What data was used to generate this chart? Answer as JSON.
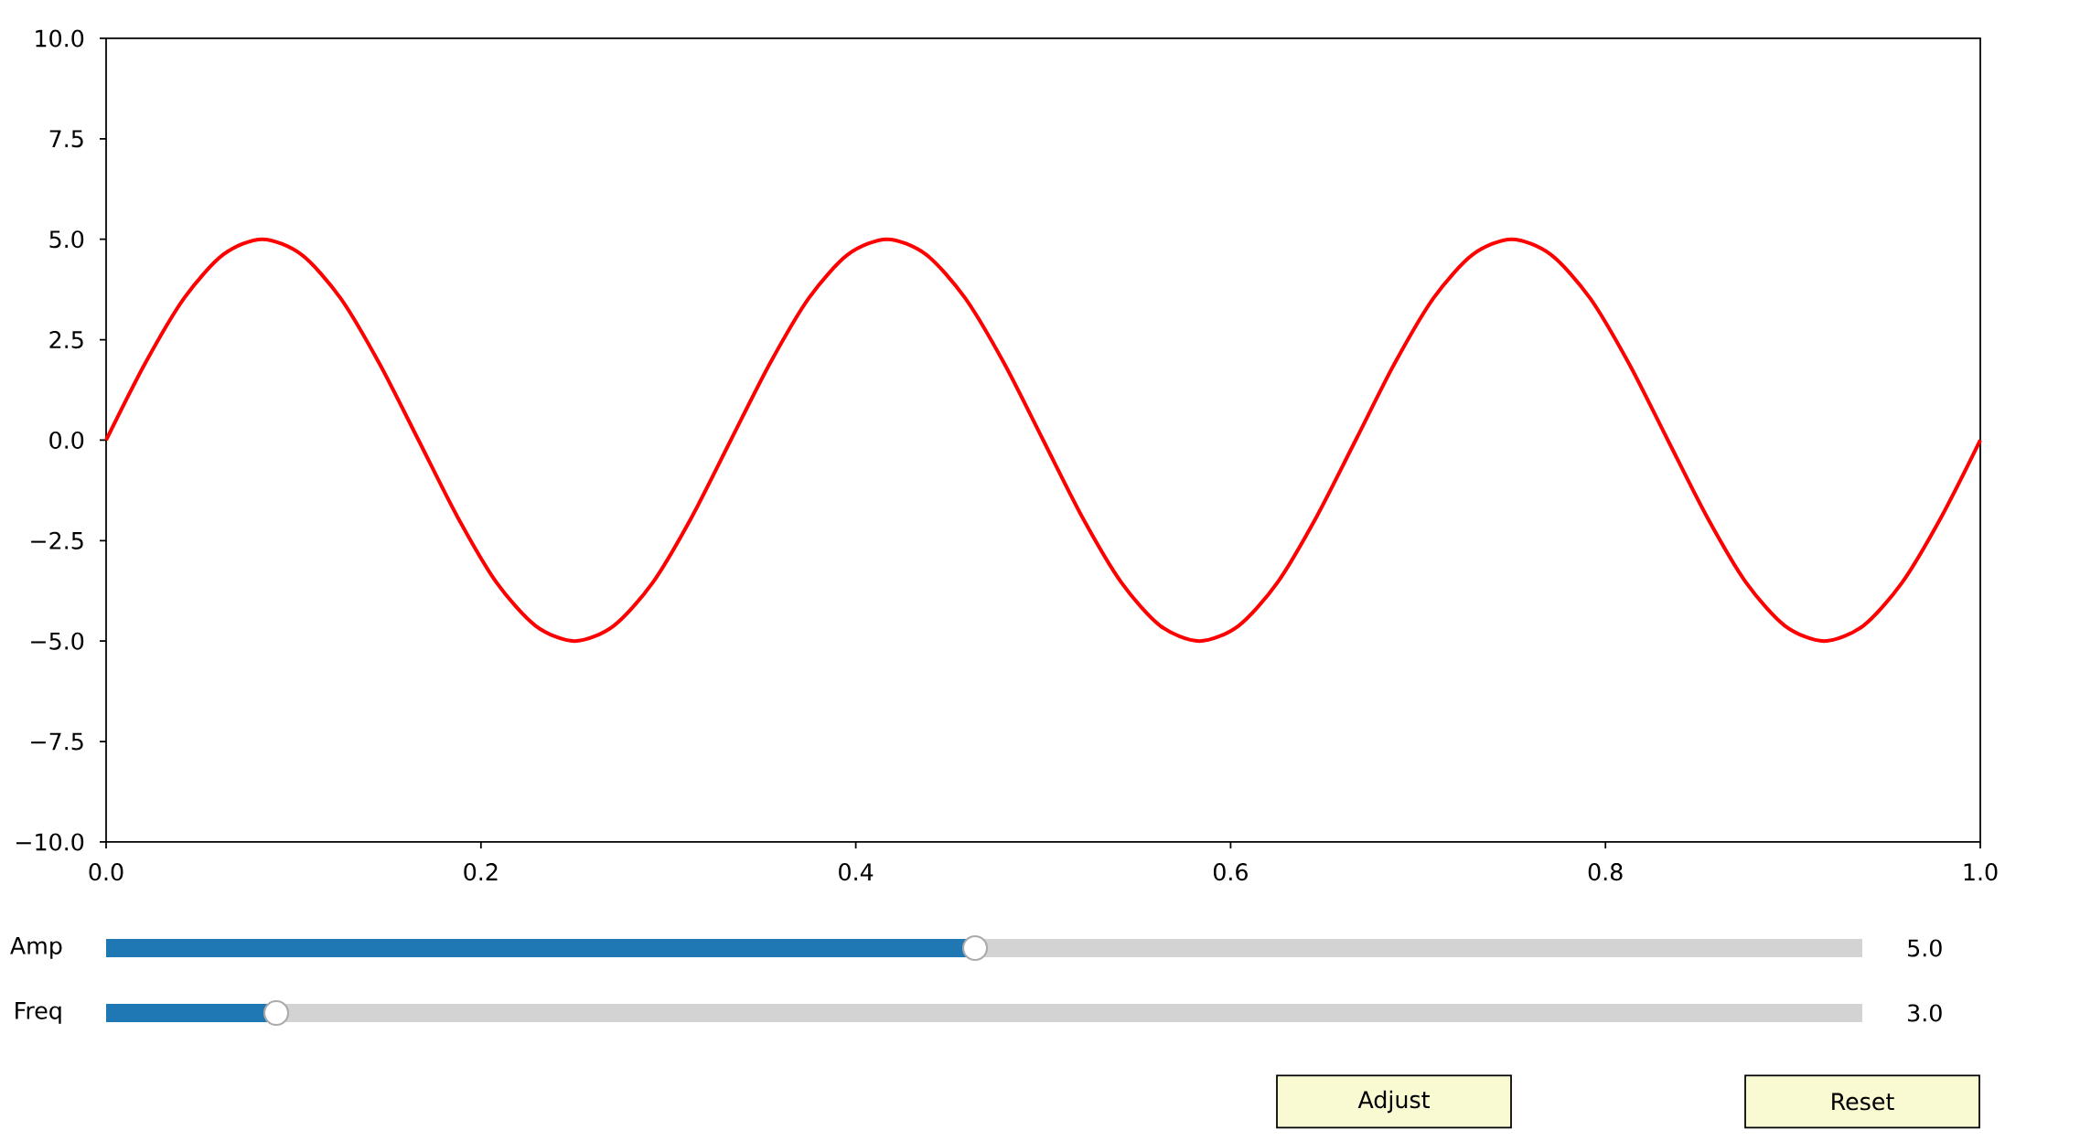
{
  "chart_data": [
    {
      "type": "line",
      "x": [
        0,
        0.0208,
        0.0417,
        0.0625,
        0.0833,
        0.1042,
        0.125,
        0.1458,
        0.1667,
        0.1875,
        0.2083,
        0.2292,
        0.25,
        0.2708,
        0.2917,
        0.3125,
        0.3333,
        0.3542,
        0.375,
        0.3958,
        0.4167,
        0.4375,
        0.4583,
        0.4792,
        0.5,
        0.5208,
        0.5417,
        0.5625,
        0.5833,
        0.6042,
        0.625,
        0.6458,
        0.6667,
        0.6875,
        0.7083,
        0.7292,
        0.75,
        0.7708,
        0.7917,
        0.8125,
        0.8333,
        0.8542,
        0.875,
        0.8958,
        0.9167,
        0.9375,
        0.9583,
        0.9792,
        1.0
      ],
      "series": [
        {
          "color": "#ff0000",
          "values": [
            0,
            1.91,
            3.54,
            4.62,
            5,
            4.62,
            3.54,
            1.91,
            0,
            -1.91,
            -3.54,
            -4.62,
            -5,
            -4.62,
            -3.54,
            -1.91,
            0,
            1.91,
            3.54,
            4.62,
            5,
            4.62,
            3.54,
            1.91,
            0,
            -1.91,
            -3.54,
            -4.62,
            -5,
            -4.62,
            -3.54,
            -1.91,
            0,
            1.91,
            3.54,
            4.62,
            5,
            4.62,
            3.54,
            1.91,
            0,
            -1.91,
            -3.54,
            -4.62,
            -5,
            -4.62,
            -3.54,
            -1.91,
            0
          ]
        }
      ],
      "xlim": [
        0,
        1
      ],
      "ylim": [
        -10,
        10
      ],
      "xticks": [
        {
          "value": 0,
          "label": "0.0"
        },
        {
          "value": 0.2,
          "label": "0.2"
        },
        {
          "value": 0.4,
          "label": "0.4"
        },
        {
          "value": 0.6,
          "label": "0.6"
        },
        {
          "value": 0.8,
          "label": "0.8"
        },
        {
          "value": 1,
          "label": "1.0"
        }
      ],
      "yticks": [
        {
          "value": -10,
          "label": "−10.0"
        },
        {
          "value": -7.5,
          "label": "−7.5"
        },
        {
          "value": -5,
          "label": "−5.0"
        },
        {
          "value": -2.5,
          "label": "−2.5"
        },
        {
          "value": 0,
          "label": "0.0"
        },
        {
          "value": 2.5,
          "label": "2.5"
        },
        {
          "value": 5,
          "label": "5.0"
        },
        {
          "value": 7.5,
          "label": "7.5"
        },
        {
          "value": 10,
          "label": "10.0"
        }
      ]
    },
    {
      "type": "other",
      "annotations": [
        "Amp",
        "5.0",
        "Freq",
        "3.0",
        "Adjust",
        "Reset"
      ]
    }
  ]
}
